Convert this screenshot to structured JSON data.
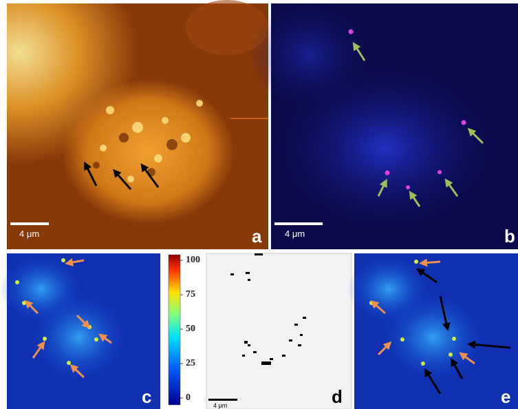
{
  "panels": [
    {
      "label": "a",
      "scale_bar": "4 μm"
    },
    {
      "label": "b",
      "scale_bar": "4 μm"
    },
    {
      "label": "c"
    },
    {
      "label": "d",
      "scale_bar": "4 μm"
    },
    {
      "label": "e"
    }
  ],
  "colorbar": {
    "lim": [
      0,
      100
    ],
    "ticks": [
      100,
      75,
      50,
      25,
      0
    ]
  }
}
